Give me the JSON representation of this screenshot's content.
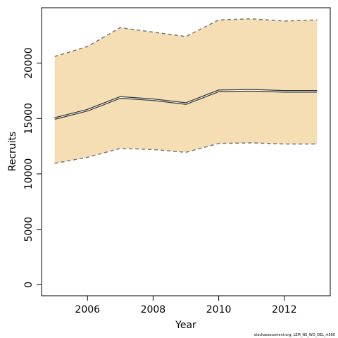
{
  "chart_data": {
    "type": "area",
    "xlabel": "Year",
    "ylabel": "Recruits",
    "xlim": [
      2004.6,
      2013.4
    ],
    "ylim": [
      -1000,
      25000
    ],
    "x_ticks": [
      2006,
      2008,
      2010,
      2012
    ],
    "y_ticks": [
      0,
      5000,
      10000,
      15000,
      20000
    ],
    "x": [
      2005,
      2006,
      2007,
      2008,
      2009,
      2010,
      2011,
      2012,
      2013
    ],
    "series": [
      {
        "role": "upper",
        "values": [
          20600,
          21500,
          23200,
          22800,
          22400,
          23900,
          24000,
          23800,
          23900
        ]
      },
      {
        "role": "estimate",
        "values": [
          15000,
          15750,
          16900,
          16700,
          16350,
          17500,
          17550,
          17450,
          17450
        ]
      },
      {
        "role": "lower",
        "values": [
          10950,
          11500,
          12300,
          12200,
          11950,
          12750,
          12800,
          12700,
          12700
        ]
      }
    ],
    "grid": false,
    "colors": {
      "band": "#f5deb3",
      "line": "#333333",
      "bounds": "#777777"
    }
  },
  "footer": {
    "credit": "stockassessment.org, LEM_NS_WO_DEL_rt560"
  }
}
